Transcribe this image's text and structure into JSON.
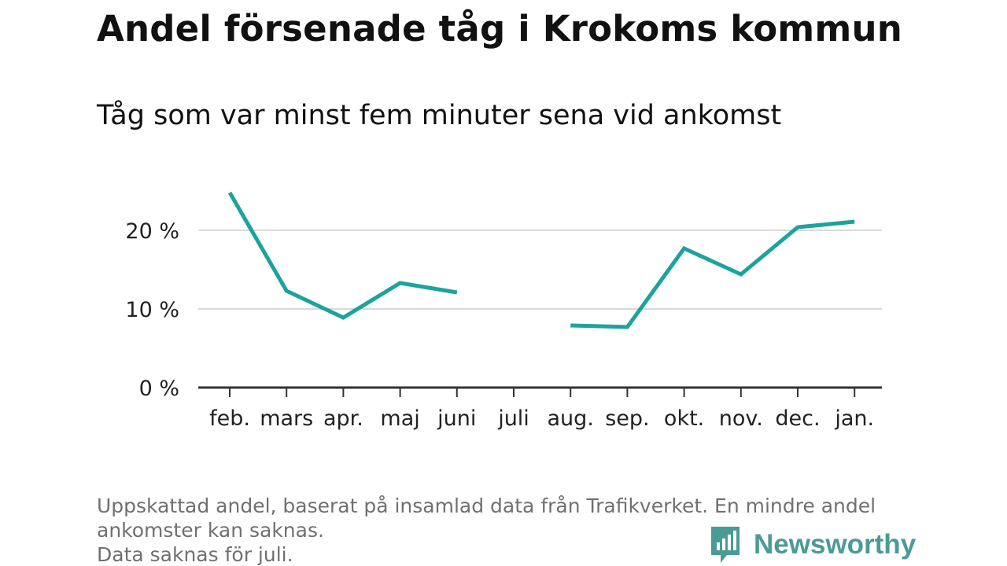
{
  "header": {
    "title": "Andel försenade tåg i Krokoms kommun",
    "subtitle": "Tåg som var minst fem minuter sena vid ankomst"
  },
  "footer": {
    "note_line1": "Uppskattad andel, baserat på insamlad data från Trafikverket. En mindre andel",
    "note_line2": "ankomster kan saknas.",
    "note_line3": "Data saknas för juli.",
    "brand": "Newsworthy"
  },
  "colors": {
    "line": "#1ba39c",
    "grid": "#d9d9d9",
    "axis": "#333333",
    "brand": "#4a9b96"
  },
  "chart_data": {
    "type": "line",
    "title": "Andel försenade tåg i Krokoms kommun",
    "subtitle": "Tåg som var minst fem minuter sena vid ankomst",
    "xlabel": "",
    "ylabel": "",
    "categories": [
      "feb.",
      "mars",
      "apr.",
      "maj",
      "juni",
      "juli",
      "aug.",
      "sep.",
      "okt.",
      "nov.",
      "dec.",
      "jan."
    ],
    "series": [
      {
        "values": [
          24.8,
          12.3,
          8.9,
          13.3,
          12.1,
          null,
          7.9,
          7.7,
          17.7,
          14.4,
          20.4,
          21.1
        ]
      }
    ],
    "ylim": [
      0,
      25
    ],
    "yticks": [
      0,
      10,
      20
    ],
    "ytick_labels": [
      "0 %",
      "10 %",
      "20 %"
    ],
    "grid": true,
    "legend": "none"
  }
}
